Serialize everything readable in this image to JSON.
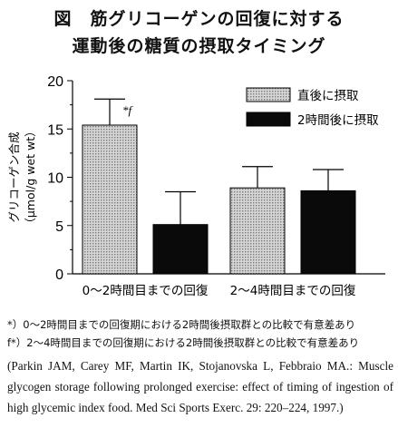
{
  "title_line1": "図　筋グリコーゲンの回復に対する",
  "title_line2": "運動後の糖質の摂取タイミング",
  "chart_data": {
    "type": "bar",
    "categories": [
      "0～2時間目までの回復",
      "2～4時間目までの回復"
    ],
    "series": [
      {
        "name": "直後に摂取",
        "values": [
          15.4,
          8.9
        ],
        "error": [
          2.7,
          2.2
        ],
        "color": "#bdbdbd",
        "pattern": "dotted-gray"
      },
      {
        "name": "2時間後に摂取",
        "values": [
          5.1,
          8.6
        ],
        "error": [
          3.4,
          2.2
        ],
        "color": "#0a0a0a"
      }
    ],
    "ylabel_line1": "グリコーゲン合成",
    "ylabel_line2": "（μmol/g wet wt）",
    "ylim": [
      0,
      20
    ],
    "yticks": [
      "0",
      "5",
      "10",
      "15",
      "20"
    ],
    "annotation": "*f",
    "legend_position": "top-right",
    "grid": false
  },
  "notes": [
    "*）0～2時間目までの回復期における2時間後摂取群との比較で有意差あり",
    "f*）2～4時間目までの回復期における2時間後摂取群との比較で有意差あり"
  ],
  "reference": "(Parkin JAM, Carey MF, Martin IK, Stojanovska L, Febbraio MA.: Muscle glycogen storage following prolonged exercise: effect of timing of ingestion of high glycemic index food. Med Sci Sports Exerc. 29: 220–224, 1997.)"
}
